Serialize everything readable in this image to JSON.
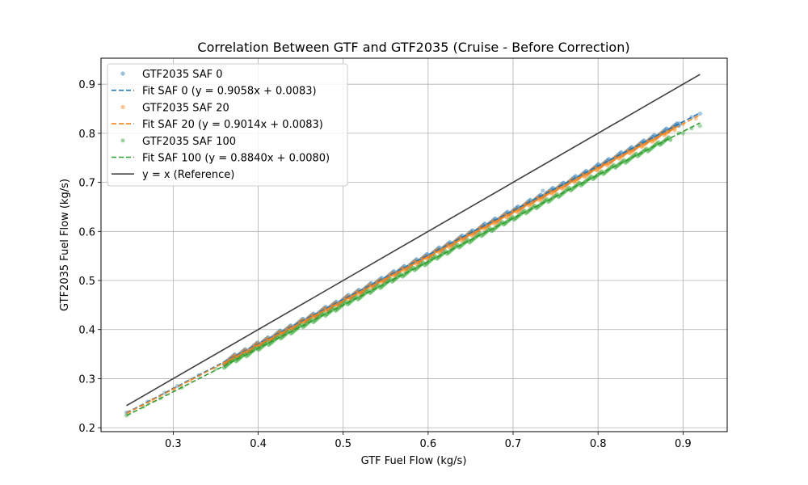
{
  "chart_data": {
    "type": "scatter",
    "title": "Correlation Between GTF and GTF2035 (Cruise - Before Correction)",
    "xlabel": "GTF Fuel Flow (kg/s)",
    "ylabel": "GTF2035 Fuel Flow (kg/s)",
    "xlim": [
      0.215,
      0.952
    ],
    "ylim": [
      0.192,
      0.953
    ],
    "xticks": [
      0.3,
      0.4,
      0.5,
      0.6,
      0.7,
      0.8,
      0.9
    ],
    "yticks": [
      0.2,
      0.3,
      0.4,
      0.5,
      0.6,
      0.7,
      0.8,
      0.9
    ],
    "grid": true,
    "legend_position": "upper-left",
    "scatter_series": [
      {
        "name": "GTF2035 SAF 0",
        "color": "#1f77b4",
        "slope": 0.9058,
        "intercept": 0.0083,
        "sparse_points": [
          [
            0.245,
            0.231
          ],
          [
            0.27,
            0.253
          ],
          [
            0.29,
            0.271
          ],
          [
            0.305,
            0.285
          ],
          [
            0.33,
            0.307
          ],
          [
            0.896,
            0.82
          ],
          [
            0.91,
            0.833
          ],
          [
            0.92,
            0.84
          ],
          [
            0.735,
            0.683
          ],
          [
            0.74,
            0.679
          ]
        ],
        "dense_x_range": [
          0.36,
          0.895
        ]
      },
      {
        "name": "GTF2035 SAF 20",
        "color": "#ff7f0e",
        "slope": 0.9014,
        "intercept": 0.0083,
        "sparse_points": [
          [
            0.248,
            0.232
          ],
          [
            0.275,
            0.256
          ],
          [
            0.3,
            0.279
          ],
          [
            0.32,
            0.297
          ],
          [
            0.9,
            0.819
          ],
          [
            0.915,
            0.83
          ]
        ],
        "dense_x_range": [
          0.36,
          0.89
        ]
      },
      {
        "name": "GTF2035 SAF 100",
        "color": "#2ca02c",
        "slope": 0.884,
        "intercept": 0.008,
        "sparse_points": [
          [
            0.245,
            0.225
          ],
          [
            0.265,
            0.243
          ],
          [
            0.285,
            0.26
          ],
          [
            0.31,
            0.282
          ],
          [
            0.35,
            0.32
          ],
          [
            0.9,
            0.8
          ],
          [
            0.91,
            0.81
          ],
          [
            0.92,
            0.815
          ],
          [
            0.895,
            0.8
          ]
        ],
        "dense_x_range": [
          0.36,
          0.885
        ]
      }
    ],
    "fit_lines": [
      {
        "name": "Fit SAF 0 (y = 0.9058x + 0.0083)",
        "color": "#1f77b4",
        "slope": 0.9058,
        "intercept": 0.0083,
        "x_range": [
          0.245,
          0.92
        ]
      },
      {
        "name": "Fit SAF 20 (y = 0.9014x + 0.0083)",
        "color": "#ff7f0e",
        "slope": 0.9014,
        "intercept": 0.0083,
        "x_range": [
          0.245,
          0.92
        ]
      },
      {
        "name": "Fit SAF 100 (y = 0.8840x + 0.0080)",
        "color": "#2ca02c",
        "slope": 0.884,
        "intercept": 0.008,
        "x_range": [
          0.245,
          0.92
        ]
      }
    ],
    "reference_line": {
      "name": "y = x (Reference)",
      "color": "#404040",
      "x_range": [
        0.245,
        0.92
      ]
    },
    "legend_entries": [
      "GTF2035 SAF 0",
      "Fit SAF 0 (y = 0.9058x + 0.0083)",
      "GTF2035 SAF 20",
      "Fit SAF 20 (y = 0.9014x + 0.0083)",
      "GTF2035 SAF 100",
      "Fit SAF 100 (y = 0.8840x + 0.0080)",
      "y = x (Reference)"
    ]
  }
}
